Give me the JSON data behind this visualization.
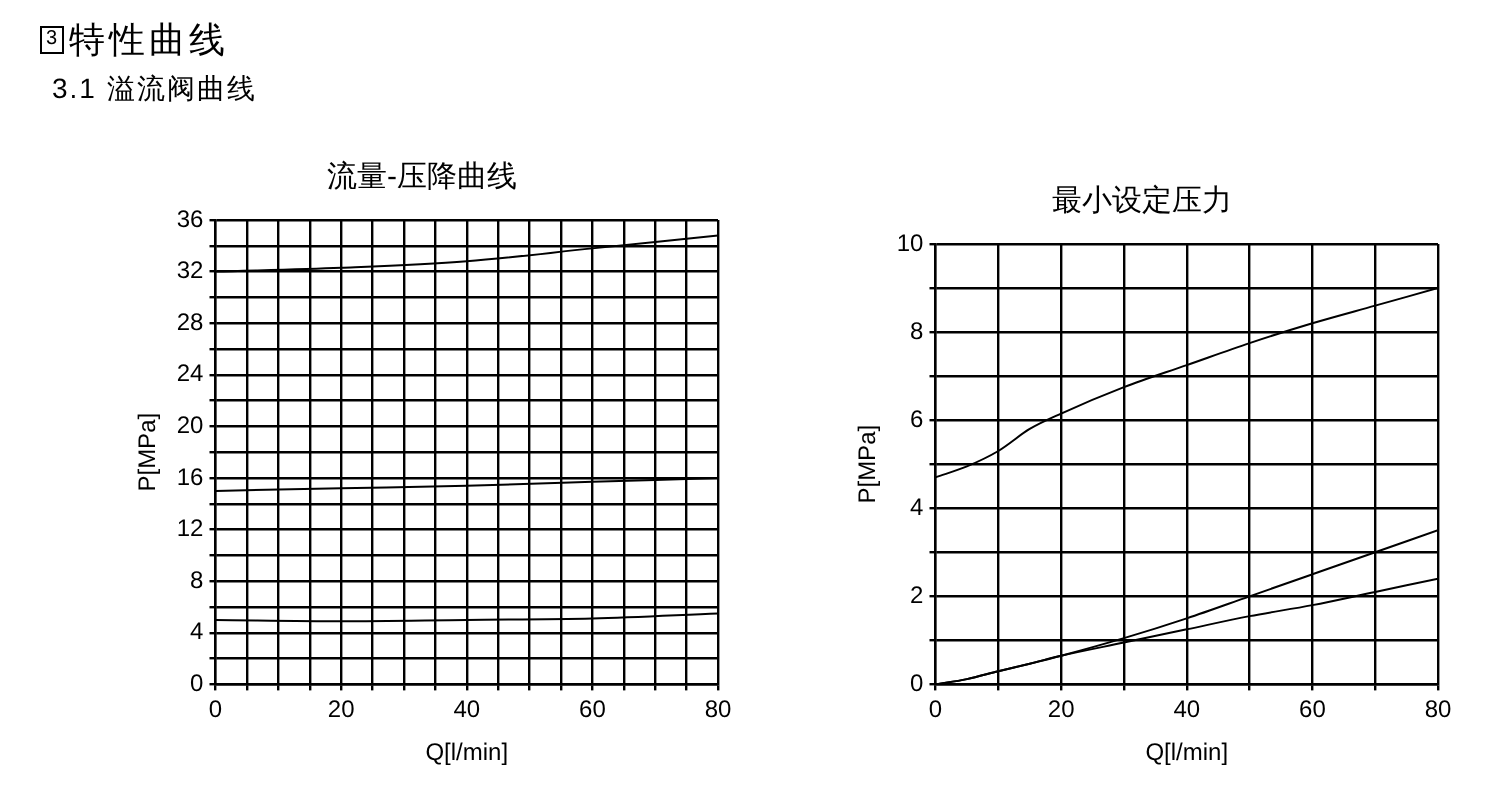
{
  "chart_data": [
    {
      "type": "line",
      "title": "流量-压降曲线",
      "xlabel": "Q[l/min]",
      "ylabel": "P[MPa]",
      "annotations": [
        "3",
        "特性曲线",
        "3.1 溢流阀曲线"
      ],
      "xlim": [
        0,
        80
      ],
      "ylim": [
        0,
        36
      ],
      "xticks": [
        0,
        {
          "value": 5,
          "label": null
        },
        {
          "value": 10,
          "label": null
        },
        {
          "value": 15,
          "label": null
        },
        20,
        {
          "value": 25,
          "label": null
        },
        {
          "value": 30,
          "label": null
        },
        {
          "value": 35,
          "label": null
        },
        40,
        {
          "value": 45,
          "label": null
        },
        {
          "value": 50,
          "label": null
        },
        {
          "value": 55,
          "label": null
        },
        60,
        {
          "value": 65,
          "label": null
        },
        {
          "value": 70,
          "label": null
        },
        {
          "value": 75,
          "label": null
        },
        80
      ],
      "yticks": [
        0,
        {
          "value": 2,
          "label": null
        },
        4,
        {
          "value": 6,
          "label": null
        },
        8,
        {
          "value": 10,
          "label": null
        },
        12,
        {
          "value": 14,
          "label": null
        },
        16,
        {
          "value": 18,
          "label": null
        },
        20,
        {
          "value": 22,
          "label": null
        },
        24,
        {
          "value": 26,
          "label": null
        },
        28,
        {
          "value": 30,
          "label": null
        },
        32,
        {
          "value": 34,
          "label": null
        },
        36
      ],
      "grid": true,
      "marker": "none",
      "line_style": "solid",
      "x": [
        0,
        20,
        40,
        60,
        80
      ],
      "series": [
        {
          "color": "#000000",
          "values": [
            32,
            32.3,
            32.8,
            33.8,
            34.8
          ]
        },
        {
          "color": "#000000",
          "values": [
            15,
            15.2,
            15.4,
            15.7,
            16
          ]
        },
        {
          "color": "#000000",
          "values": [
            5,
            4.9,
            5,
            5.1,
            5.5
          ]
        }
      ]
    },
    {
      "type": "line",
      "title": "最小设定压力",
      "xlabel": "Q[l/min]",
      "ylabel": "P[MPa]",
      "xlim": [
        0,
        80
      ],
      "ylim": [
        0,
        10
      ],
      "xticks": [
        0,
        {
          "value": 10,
          "label": null
        },
        20,
        {
          "value": 30,
          "label": null
        },
        40,
        {
          "value": 50,
          "label": null
        },
        60,
        {
          "value": 70,
          "label": null
        },
        80
      ],
      "yticks": [
        0,
        {
          "value": 1,
          "label": null
        },
        2,
        {
          "value": 3,
          "label": null
        },
        4,
        {
          "value": 5,
          "label": null
        },
        6,
        {
          "value": 7,
          "label": null
        },
        8,
        {
          "value": 9,
          "label": null
        },
        10
      ],
      "grid": true,
      "marker": "none",
      "line_style": "solid",
      "x": [
        0,
        5,
        10,
        15,
        20,
        30,
        40,
        50,
        60,
        70,
        80
      ],
      "series": [
        {
          "color": "#000000",
          "values": [
            4.7,
            4.95,
            5.3,
            5.8,
            6.15,
            6.75,
            7.25,
            7.75,
            8.2,
            8.6,
            9.0
          ]
        },
        {
          "color": "#000000",
          "values": [
            0,
            0.12,
            0.3,
            0.47,
            0.65,
            1.05,
            1.5,
            2.0,
            2.5,
            3.0,
            3.5
          ]
        },
        {
          "color": "#000000",
          "values": [
            0,
            0.12,
            0.3,
            0.47,
            0.65,
            0.95,
            1.25,
            1.55,
            1.8,
            2.1,
            2.4
          ]
        }
      ]
    }
  ]
}
